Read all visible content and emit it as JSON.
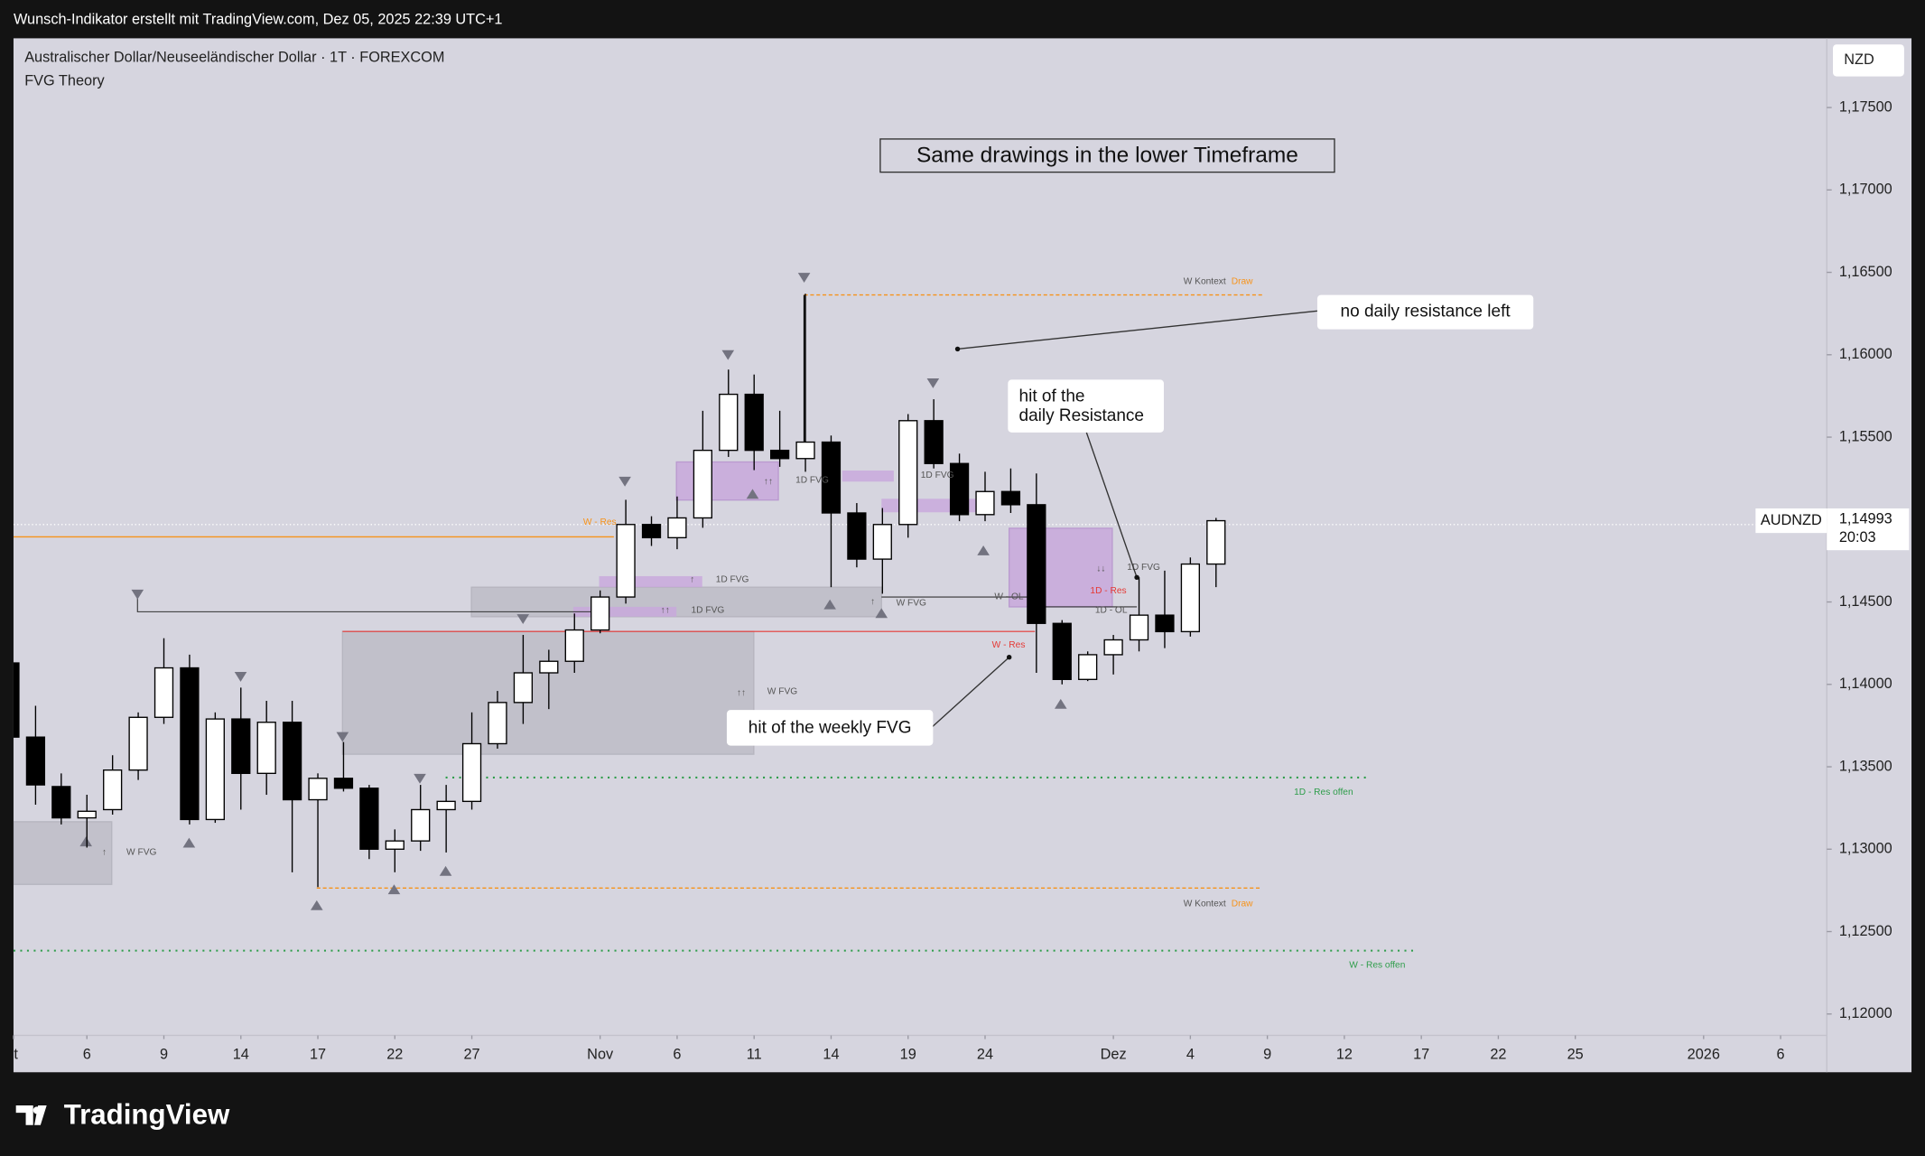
{
  "header": {
    "text": "Wunsch-Indikator erstellt mit TradingView.com, Dez 05, 2025 22:39 UTC+1"
  },
  "footer": {
    "brand": "TradingView"
  },
  "chart_data": {
    "type": "candlestick",
    "title": "Australischer Dollar/Neuseeländischer Dollar · 1T · FOREXCOM",
    "subtitle": "FVG Theory",
    "currency": "NZD",
    "symbol": "AUDNZD",
    "last_price": {
      "value": 1.14993,
      "label": "1,14993"
    },
    "countdown": "20:03",
    "boxed_title": "Same drawings in the lower Timeframe",
    "callouts": [
      "no daily resistance left",
      "hit of the",
      "daily Resistance",
      "hit of the weekly FVG"
    ],
    "drawing_labels": [
      {
        "text": "W Kontext",
        "color": "#555555"
      },
      {
        "text": "Draw",
        "color": "#f7931a"
      },
      {
        "text": "W Kontext",
        "color": "#555555"
      },
      {
        "text": "Draw",
        "color": "#f7931a"
      },
      {
        "text": "1D FVG",
        "color": "#555555"
      },
      {
        "text": "1D FVG",
        "color": "#555555"
      },
      {
        "text": "1D FVG",
        "color": "#555555"
      },
      {
        "text": "1D FVG",
        "color": "#555555"
      },
      {
        "text": "1D FVG",
        "color": "#555555"
      },
      {
        "text": "W FVG",
        "color": "#555555"
      },
      {
        "text": "W FVG",
        "color": "#555555"
      },
      {
        "text": "W FVG",
        "color": "#555555"
      },
      {
        "text": "W - Res",
        "color": "#f7931a"
      },
      {
        "text": "W - Res",
        "color": "#e53935"
      },
      {
        "text": "1D - Res",
        "color": "#e53935"
      },
      {
        "text": "1D - OL",
        "color": "#555555"
      },
      {
        "text": "W - OL",
        "color": "#555555"
      },
      {
        "text": "1D - Res offen",
        "color": "#2e9d4a"
      },
      {
        "text": "W - Res offen",
        "color": "#2e9d4a"
      },
      {
        "text": "↑↑",
        "color": "#555555"
      },
      {
        "text": "↑",
        "color": "#555555"
      },
      {
        "text": "↑↑",
        "color": "#555555"
      },
      {
        "text": "↑",
        "color": "#555555"
      },
      {
        "text": "↑",
        "color": "#555555"
      },
      {
        "text": "↓↓",
        "color": "#555555"
      },
      {
        "text": "↑↑",
        "color": "#555555"
      }
    ],
    "x": [
      0,
      1,
      2,
      3,
      4,
      5,
      6,
      7,
      8,
      9,
      10,
      11,
      12,
      13,
      14,
      15,
      16,
      17,
      18,
      19,
      20,
      21,
      22,
      23,
      24,
      25,
      26,
      27,
      28,
      29,
      30,
      31,
      32,
      33,
      34,
      35,
      36,
      37,
      38,
      39,
      40,
      41,
      42,
      43,
      44,
      45,
      46,
      47
    ],
    "open": [
      1.1413,
      1.1368,
      1.1338,
      1.1319,
      1.1324,
      1.1348,
      1.138,
      1.141,
      1.1318,
      1.1379,
      1.1346,
      1.1377,
      1.133,
      1.1343,
      1.1337,
      1.13,
      1.1305,
      1.1324,
      1.1329,
      1.1364,
      1.1389,
      1.1407,
      1.1414,
      1.1433,
      1.1453,
      1.1497,
      1.1489,
      1.1501,
      1.1542,
      1.1576,
      1.1542,
      1.1537,
      1.1547,
      1.1504,
      1.1476,
      1.1497,
      1.156,
      1.1534,
      1.1503,
      1.1517,
      1.1509,
      1.1437,
      1.1403,
      1.1418,
      1.1427,
      1.1442,
      1.1432,
      1.1473
    ],
    "high": [
      1.142,
      1.1387,
      1.1346,
      1.1333,
      1.1357,
      1.1383,
      1.1428,
      1.1418,
      1.1383,
      1.1398,
      1.139,
      1.139,
      1.1346,
      1.1365,
      1.1339,
      1.1312,
      1.1339,
      1.1339,
      1.1383,
      1.1396,
      1.143,
      1.1421,
      1.1443,
      1.1457,
      1.1512,
      1.1502,
      1.1514,
      1.1566,
      1.1591,
      1.1588,
      1.1566,
      1.1637,
      1.1551,
      1.151,
      1.1507,
      1.1564,
      1.1573,
      1.154,
      1.1529,
      1.1531,
      1.1528,
      1.1439,
      1.142,
      1.143,
      1.1465,
      1.1469,
      1.1477,
      1.1501
    ],
    "low": [
      1.136,
      1.1327,
      1.1315,
      1.1301,
      1.1321,
      1.1342,
      1.1376,
      1.1315,
      1.1316,
      1.1324,
      1.1333,
      1.1286,
      1.1277,
      1.1335,
      1.1294,
      1.1286,
      1.1299,
      1.1298,
      1.1324,
      1.1361,
      1.1376,
      1.1385,
      1.1407,
      1.1431,
      1.1449,
      1.1484,
      1.1482,
      1.1495,
      1.1538,
      1.153,
      1.1532,
      1.1529,
      1.1459,
      1.1471,
      1.1455,
      1.1489,
      1.1531,
      1.1499,
      1.1499,
      1.1504,
      1.1407,
      1.14,
      1.1402,
      1.1406,
      1.142,
      1.1422,
      1.1429,
      1.1459
    ],
    "close": [
      1.1368,
      1.1339,
      1.1319,
      1.1323,
      1.1348,
      1.138,
      1.141,
      1.1318,
      1.1379,
      1.1346,
      1.1377,
      1.133,
      1.1343,
      1.1337,
      1.13,
      1.1305,
      1.1324,
      1.1329,
      1.1364,
      1.1389,
      1.1407,
      1.1414,
      1.1433,
      1.1453,
      1.1497,
      1.1489,
      1.1501,
      1.1542,
      1.1576,
      1.1542,
      1.1537,
      1.1547,
      1.1504,
      1.1476,
      1.1497,
      1.156,
      1.1534,
      1.1503,
      1.1517,
      1.1509,
      1.1437,
      1.1403,
      1.1418,
      1.1427,
      1.1442,
      1.1432,
      1.1473,
      1.14993
    ],
    "up_color": "#ffffff",
    "down_color": "#000000",
    "border_color": "#000000",
    "xlim": [
      0.14,
      70.8
    ],
    "xticks": [
      {
        "value": 0,
        "label": "t"
      },
      {
        "value": 3,
        "label": "6"
      },
      {
        "value": 6,
        "label": "9"
      },
      {
        "value": 9,
        "label": "14"
      },
      {
        "value": 12,
        "label": "17"
      },
      {
        "value": 15,
        "label": "22"
      },
      {
        "value": 18,
        "label": "27"
      },
      {
        "value": 23,
        "label": "Nov"
      },
      {
        "value": 26,
        "label": "6"
      },
      {
        "value": 29,
        "label": "11"
      },
      {
        "value": 32,
        "label": "14"
      },
      {
        "value": 35,
        "label": "19"
      },
      {
        "value": 38,
        "label": "24"
      },
      {
        "value": 43,
        "label": "Dez"
      },
      {
        "value": 46,
        "label": "4"
      },
      {
        "value": 49,
        "label": "9"
      },
      {
        "value": 52,
        "label": "12"
      },
      {
        "value": 55,
        "label": "17"
      },
      {
        "value": 58,
        "label": "22"
      },
      {
        "value": 61,
        "label": "25"
      },
      {
        "value": 66,
        "label": "2026"
      },
      {
        "value": 69,
        "label": "6"
      }
    ],
    "ylim": [
      1.1187,
      1.1792
    ],
    "yticks": [
      {
        "value": 1.175,
        "label": "1,17500"
      },
      {
        "value": 1.17,
        "label": "1,17000"
      },
      {
        "value": 1.165,
        "label": "1,16500"
      },
      {
        "value": 1.16,
        "label": "1,16000"
      },
      {
        "value": 1.155,
        "label": "1,15500"
      },
      {
        "value": 1.15,
        "label": "1,15000"
      },
      {
        "value": 1.145,
        "label": "1,14500"
      },
      {
        "value": 1.14,
        "label": "1,14000"
      },
      {
        "value": 1.135,
        "label": "1,13500"
      },
      {
        "value": 1.13,
        "label": "1,13000"
      },
      {
        "value": 1.125,
        "label": "1,12500"
      },
      {
        "value": 1.12,
        "label": "1,12000"
      }
    ],
    "grid": false
  }
}
